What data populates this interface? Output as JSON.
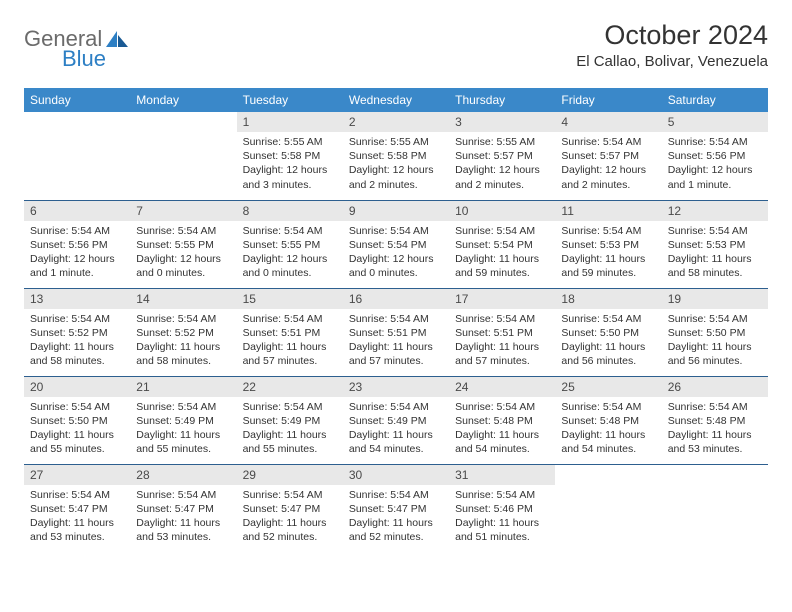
{
  "logo": {
    "general": "General",
    "blue": "Blue"
  },
  "title": "October 2024",
  "location": "El Callao, Bolivar, Venezuela",
  "headers": [
    "Sunday",
    "Monday",
    "Tuesday",
    "Wednesday",
    "Thursday",
    "Friday",
    "Saturday"
  ],
  "colors": {
    "header_bg": "#3a88c9",
    "header_text": "#ffffff",
    "daynum_bg": "#e8e8e8",
    "row_border": "#2d5f8f",
    "logo_blue": "#2d7fc4",
    "logo_gray": "#6b6b6b"
  },
  "weeks": [
    [
      null,
      null,
      {
        "n": "1",
        "sr": "5:55 AM",
        "ss": "5:58 PM",
        "dl": "12 hours and 3 minutes."
      },
      {
        "n": "2",
        "sr": "5:55 AM",
        "ss": "5:58 PM",
        "dl": "12 hours and 2 minutes."
      },
      {
        "n": "3",
        "sr": "5:55 AM",
        "ss": "5:57 PM",
        "dl": "12 hours and 2 minutes."
      },
      {
        "n": "4",
        "sr": "5:54 AM",
        "ss": "5:57 PM",
        "dl": "12 hours and 2 minutes."
      },
      {
        "n": "5",
        "sr": "5:54 AM",
        "ss": "5:56 PM",
        "dl": "12 hours and 1 minute."
      }
    ],
    [
      {
        "n": "6",
        "sr": "5:54 AM",
        "ss": "5:56 PM",
        "dl": "12 hours and 1 minute."
      },
      {
        "n": "7",
        "sr": "5:54 AM",
        "ss": "5:55 PM",
        "dl": "12 hours and 0 minutes."
      },
      {
        "n": "8",
        "sr": "5:54 AM",
        "ss": "5:55 PM",
        "dl": "12 hours and 0 minutes."
      },
      {
        "n": "9",
        "sr": "5:54 AM",
        "ss": "5:54 PM",
        "dl": "12 hours and 0 minutes."
      },
      {
        "n": "10",
        "sr": "5:54 AM",
        "ss": "5:54 PM",
        "dl": "11 hours and 59 minutes."
      },
      {
        "n": "11",
        "sr": "5:54 AM",
        "ss": "5:53 PM",
        "dl": "11 hours and 59 minutes."
      },
      {
        "n": "12",
        "sr": "5:54 AM",
        "ss": "5:53 PM",
        "dl": "11 hours and 58 minutes."
      }
    ],
    [
      {
        "n": "13",
        "sr": "5:54 AM",
        "ss": "5:52 PM",
        "dl": "11 hours and 58 minutes."
      },
      {
        "n": "14",
        "sr": "5:54 AM",
        "ss": "5:52 PM",
        "dl": "11 hours and 58 minutes."
      },
      {
        "n": "15",
        "sr": "5:54 AM",
        "ss": "5:51 PM",
        "dl": "11 hours and 57 minutes."
      },
      {
        "n": "16",
        "sr": "5:54 AM",
        "ss": "5:51 PM",
        "dl": "11 hours and 57 minutes."
      },
      {
        "n": "17",
        "sr": "5:54 AM",
        "ss": "5:51 PM",
        "dl": "11 hours and 57 minutes."
      },
      {
        "n": "18",
        "sr": "5:54 AM",
        "ss": "5:50 PM",
        "dl": "11 hours and 56 minutes."
      },
      {
        "n": "19",
        "sr": "5:54 AM",
        "ss": "5:50 PM",
        "dl": "11 hours and 56 minutes."
      }
    ],
    [
      {
        "n": "20",
        "sr": "5:54 AM",
        "ss": "5:50 PM",
        "dl": "11 hours and 55 minutes."
      },
      {
        "n": "21",
        "sr": "5:54 AM",
        "ss": "5:49 PM",
        "dl": "11 hours and 55 minutes."
      },
      {
        "n": "22",
        "sr": "5:54 AM",
        "ss": "5:49 PM",
        "dl": "11 hours and 55 minutes."
      },
      {
        "n": "23",
        "sr": "5:54 AM",
        "ss": "5:49 PM",
        "dl": "11 hours and 54 minutes."
      },
      {
        "n": "24",
        "sr": "5:54 AM",
        "ss": "5:48 PM",
        "dl": "11 hours and 54 minutes."
      },
      {
        "n": "25",
        "sr": "5:54 AM",
        "ss": "5:48 PM",
        "dl": "11 hours and 54 minutes."
      },
      {
        "n": "26",
        "sr": "5:54 AM",
        "ss": "5:48 PM",
        "dl": "11 hours and 53 minutes."
      }
    ],
    [
      {
        "n": "27",
        "sr": "5:54 AM",
        "ss": "5:47 PM",
        "dl": "11 hours and 53 minutes."
      },
      {
        "n": "28",
        "sr": "5:54 AM",
        "ss": "5:47 PM",
        "dl": "11 hours and 53 minutes."
      },
      {
        "n": "29",
        "sr": "5:54 AM",
        "ss": "5:47 PM",
        "dl": "11 hours and 52 minutes."
      },
      {
        "n": "30",
        "sr": "5:54 AM",
        "ss": "5:47 PM",
        "dl": "11 hours and 52 minutes."
      },
      {
        "n": "31",
        "sr": "5:54 AM",
        "ss": "5:46 PM",
        "dl": "11 hours and 51 minutes."
      },
      null,
      null
    ]
  ],
  "labels": {
    "sunrise": "Sunrise:",
    "sunset": "Sunset:",
    "daylight": "Daylight:"
  }
}
